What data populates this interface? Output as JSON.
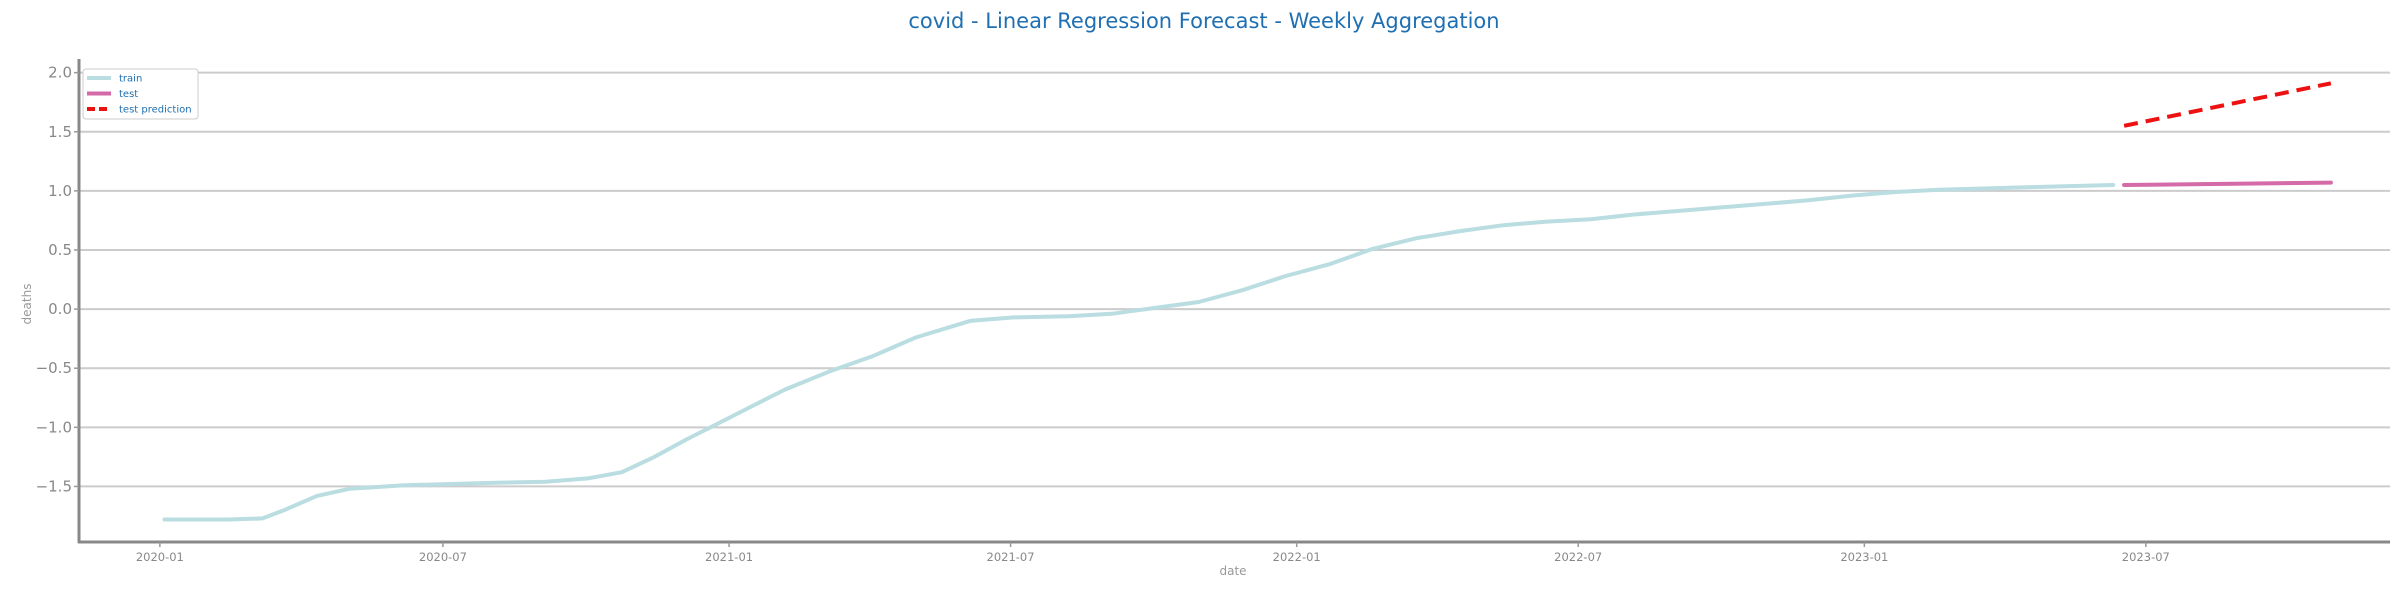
{
  "chart_data": {
    "type": "line",
    "title": "covid - Linear Regression Forecast - Weekly Aggregation",
    "xlabel": "date",
    "ylabel": "deaths",
    "x_ticks": [
      "2020-01",
      "2020-07",
      "2021-01",
      "2021-07",
      "2022-01",
      "2022-07",
      "2023-01",
      "2023-07"
    ],
    "y_ticks": [
      "2.0",
      "1.5",
      "1.0",
      "0.5",
      "0.0",
      "−0.5",
      "−1.0",
      "−1.5"
    ],
    "xlim": [
      "2019-11-10",
      "2023-12-05"
    ],
    "ylim": [
      -1.97,
      2.09
    ],
    "grid": "horizontal",
    "legend_position": "top-left",
    "series": [
      {
        "name": "train",
        "color": "#b9dde0",
        "style": "solid",
        "x": [
          "2020-01-04",
          "2020-02-15",
          "2020-03-07",
          "2020-03-21",
          "2020-04-11",
          "2020-05-02",
          "2020-06-06",
          "2020-07-04",
          "2020-08-01",
          "2020-09-05",
          "2020-10-03",
          "2020-10-24",
          "2020-11-14",
          "2020-12-05",
          "2020-12-26",
          "2021-01-16",
          "2021-02-06",
          "2021-03-06",
          "2021-04-03",
          "2021-05-01",
          "2021-06-05",
          "2021-07-03",
          "2021-08-07",
          "2021-09-04",
          "2021-10-02",
          "2021-10-30",
          "2021-11-27",
          "2021-12-25",
          "2022-01-22",
          "2022-02-19",
          "2022-03-19",
          "2022-04-16",
          "2022-05-14",
          "2022-06-11",
          "2022-07-09",
          "2022-08-06",
          "2022-09-03",
          "2022-10-01",
          "2022-10-29",
          "2022-11-26",
          "2022-12-24",
          "2023-01-21",
          "2023-02-18",
          "2023-03-18",
          "2023-04-15",
          "2023-05-13",
          "2023-06-10"
        ],
        "values": [
          -1.78,
          -1.78,
          -1.77,
          -1.7,
          -1.58,
          -1.52,
          -1.49,
          -1.48,
          -1.47,
          -1.46,
          -1.43,
          -1.38,
          -1.25,
          -1.1,
          -0.96,
          -0.82,
          -0.68,
          -0.53,
          -0.4,
          -0.24,
          -0.1,
          -0.07,
          -0.06,
          -0.04,
          0.01,
          0.06,
          0.16,
          0.28,
          0.38,
          0.51,
          0.6,
          0.66,
          0.71,
          0.74,
          0.76,
          0.8,
          0.83,
          0.86,
          0.89,
          0.92,
          0.96,
          0.99,
          1.01,
          1.02,
          1.03,
          1.04,
          1.05
        ]
      },
      {
        "name": "test",
        "color": "#d46aa8",
        "style": "solid",
        "x": [
          "2023-06-17",
          "2023-10-28"
        ],
        "values": [
          1.05,
          1.07
        ]
      },
      {
        "name": "test prediction",
        "color": "#ee1111",
        "style": "dashed",
        "x": [
          "2023-06-17",
          "2023-10-28"
        ],
        "values": [
          1.55,
          1.91
        ]
      }
    ]
  }
}
